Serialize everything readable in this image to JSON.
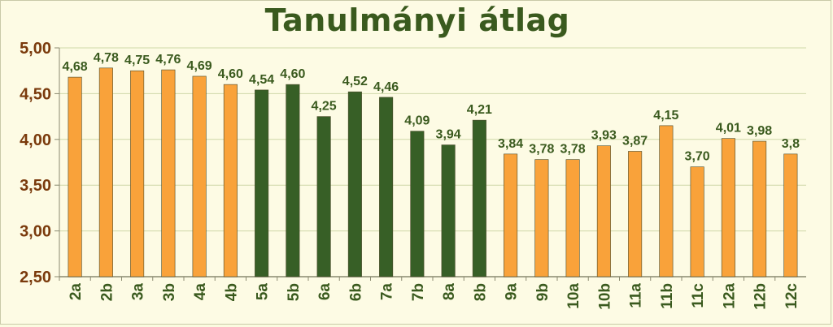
{
  "colors": {
    "orange": "#f9a23a",
    "green": "#375f26",
    "tick_text": "#7a3a0c",
    "label_text": "#3a5a1e",
    "plot_bg": "#fdfbe4",
    "grid": "#cfd8a8"
  },
  "chart_data": {
    "type": "bar",
    "title": "Tanulmányi átlag",
    "xlabel": "",
    "ylabel": "",
    "ylim": [
      2.5,
      5.0
    ],
    "yticks": [
      2.5,
      3.0,
      3.5,
      4.0,
      4.5,
      5.0
    ],
    "ytick_labels": [
      "2,50",
      "3,00",
      "3,50",
      "4,00",
      "4,50",
      "5,00"
    ],
    "grid": true,
    "legend": "none",
    "categories": [
      "2a",
      "2b",
      "3a",
      "3b",
      "4a",
      "4b",
      "5a",
      "5b",
      "6a",
      "6b",
      "7a",
      "7b",
      "8a",
      "8b",
      "9a",
      "9b",
      "10a",
      "10b",
      "11a",
      "11b",
      "11c",
      "12a",
      "12b",
      "12c"
    ],
    "values": [
      4.68,
      4.78,
      4.75,
      4.76,
      4.69,
      4.6,
      4.54,
      4.6,
      4.25,
      4.52,
      4.46,
      4.09,
      3.94,
      4.21,
      3.84,
      3.78,
      3.78,
      3.93,
      3.87,
      4.15,
      3.7,
      4.01,
      3.98,
      3.84
    ],
    "data_labels": [
      "4,68",
      "4,78",
      "4,75",
      "4,76",
      "4,69",
      "4,60",
      "4,54",
      "4,60",
      "4,25",
      "4,52",
      "4,46",
      "4,09",
      "3,94",
      "4,21",
      "3,84",
      "3,78",
      "3,78",
      "3,93",
      "3,87",
      "4,15",
      "3,70",
      "4,01",
      "3,98",
      "3,8"
    ],
    "bar_colors": [
      "orange",
      "orange",
      "orange",
      "orange",
      "orange",
      "orange",
      "green",
      "green",
      "green",
      "green",
      "green",
      "green",
      "green",
      "green",
      "orange",
      "orange",
      "orange",
      "orange",
      "orange",
      "orange",
      "orange",
      "orange",
      "orange",
      "orange"
    ]
  }
}
